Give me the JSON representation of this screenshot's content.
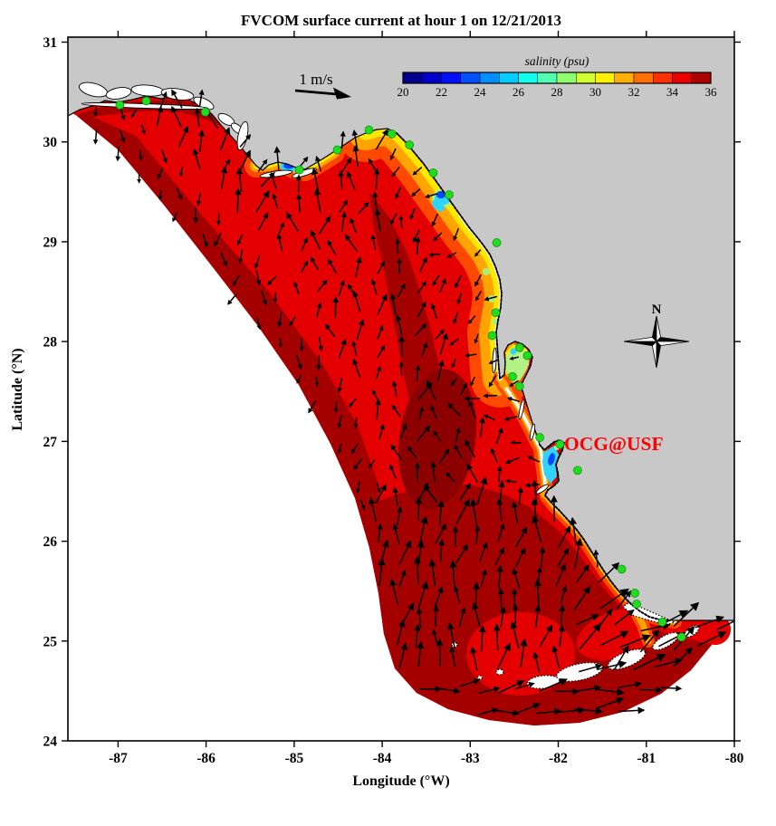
{
  "figure": {
    "title": "FVCOM surface current at hour 1 on 12/21/2013",
    "credit_label": "OCG@USF",
    "scale_arrow_label": "1 m/s",
    "compass_label": "N"
  },
  "axes": {
    "xlabel": "Longitude (°W)",
    "ylabel": "Latitude (°N)",
    "x_ticks": [
      -87,
      -86,
      -85,
      -84,
      -83,
      -82,
      -81,
      -80
    ],
    "y_ticks": [
      24,
      25,
      26,
      27,
      28,
      29,
      30,
      31
    ],
    "xlim": [
      -87.57,
      -80.0
    ],
    "ylim": [
      24.0,
      31.05
    ]
  },
  "colorbar": {
    "label": "salinity (psu)",
    "min": 20,
    "max": 36,
    "ticks": [
      20,
      22,
      24,
      26,
      28,
      30,
      32,
      34,
      36
    ],
    "palette": [
      "#00008F",
      "#0000CF",
      "#0010FF",
      "#0050FF",
      "#008FFF",
      "#00CFFF",
      "#10FFEF",
      "#50FFAF",
      "#8FFF6F",
      "#CFFF2F",
      "#FFEF00",
      "#FFAF00",
      "#FF6F00",
      "#FF2F00",
      "#EF0000",
      "#AF0000"
    ]
  },
  "style": {
    "land": "#C8C8C8",
    "red": "#E40000",
    "darkred": "#A40000",
    "darkerred": "#8C0000",
    "orangered": "#FF4800",
    "orange": "#FFA400",
    "yellow": "#FFE800",
    "lightgreen": "#A8F080",
    "cyan": "#2FD3FF",
    "blue": "#0048FF",
    "station": "#1EDD1E",
    "station_edge": "#0B8A0B",
    "credit": "#FF0000",
    "vector": "#000000"
  },
  "chart_data": {
    "type": "map",
    "title": "FVCOM surface current at hour 1 on 12/21/2013",
    "region_shown": "West Florida Shelf, eastern Gulf of Mexico (Florida panhandle to Florida Keys)",
    "field_shown": "sea-surface salinity (psu) filled contours with surface current vectors",
    "xlabel": "Longitude (°W)",
    "ylabel": "Latitude (°N)",
    "xlim": [
      -87.57,
      -80.0
    ],
    "ylim": [
      24.0,
      31.05
    ],
    "x_ticks": [
      -87,
      -86,
      -85,
      -84,
      -83,
      -82,
      -81,
      -80
    ],
    "y_ticks": [
      24,
      25,
      26,
      27,
      28,
      29,
      30,
      31
    ],
    "colorbar": {
      "label": "salinity (psu)",
      "min": 20,
      "max": 36,
      "tick_step": 2,
      "n_levels": 16,
      "palette": [
        "#00008F",
        "#0000CF",
        "#0010FF",
        "#0050FF",
        "#008FFF",
        "#00CFFF",
        "#10FFEF",
        "#50FFAF",
        "#8FFF6F",
        "#CFFF2F",
        "#FFEF00",
        "#FFAF00",
        "#FF6F00",
        "#FF2F00",
        "#EF0000",
        "#AF0000"
      ]
    },
    "scale_vector": {
      "label": "1 m/s"
    },
    "north_arrow": true,
    "annotation": {
      "text": "OCG@USF",
      "lon": -81.93,
      "lat": 26.93,
      "color": "#FF0000"
    },
    "station_marker": {
      "shape": "circle",
      "color": "#1EDD1E"
    },
    "stations_lonlat": [
      [
        -86.98,
        30.37
      ],
      [
        -86.68,
        30.41
      ],
      [
        -86.01,
        30.3
      ],
      [
        -84.94,
        29.72
      ],
      [
        -84.51,
        29.92
      ],
      [
        -84.15,
        30.12
      ],
      [
        -83.89,
        30.08
      ],
      [
        -83.69,
        29.97
      ],
      [
        -83.42,
        29.69
      ],
      [
        -83.24,
        29.47
      ],
      [
        -82.7,
        28.99
      ],
      [
        -82.71,
        28.29
      ],
      [
        -82.75,
        28.06
      ],
      [
        -82.44,
        27.94
      ],
      [
        -82.35,
        27.86
      ],
      [
        -82.52,
        27.65
      ],
      [
        -82.44,
        27.55
      ],
      [
        -82.21,
        27.04
      ],
      [
        -81.98,
        26.97
      ],
      [
        -81.78,
        26.71
      ],
      [
        -81.28,
        25.72
      ],
      [
        -81.13,
        25.48
      ],
      [
        -81.11,
        25.37
      ],
      [
        -80.82,
        25.19
      ],
      [
        -80.6,
        25.04
      ]
    ],
    "salinity_regions": [
      {
        "region": "offshore shelf along open boundary and southern Gulf",
        "salinity_psu": [
          35,
          36
        ]
      },
      {
        "region": "mid-shelf and panhandle nearshore band",
        "salinity_psu": [
          34,
          35
        ]
      },
      {
        "region": "Big Bend coastal band (orange-yellow fringe)",
        "salinity_psu": [
          29,
          34
        ]
      },
      {
        "region": "estuaries: Apalachicola Bay, Suwannee mouth, Tampa Bay, Charlotte Harbor",
        "salinity_psu": [
          20,
          29
        ]
      }
    ],
    "current_summary": [
      {
        "region": "panhandle shelf and mid-shelf",
        "direction": "northward",
        "strength": "moderate"
      },
      {
        "region": "Big Bend and southwest Florida nearshore",
        "direction": "weak west-southwestward",
        "strength": "weak"
      },
      {
        "region": "along western open boundary",
        "direction": "weak southward",
        "strength": "weak"
      },
      {
        "region": "southern shelf bulge",
        "direction": "northward",
        "strength": "moderate"
      },
      {
        "region": "Florida Keys and outer southeastern arc",
        "direction": "east-northeastward",
        "strength": "strong"
      }
    ]
  }
}
